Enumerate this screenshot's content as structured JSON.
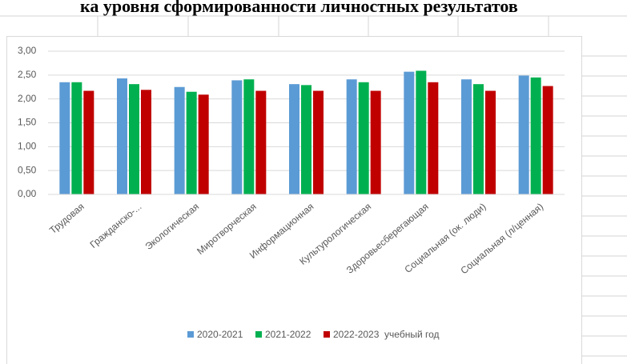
{
  "chart_data": {
    "type": "bar",
    "title": "ка уровня сформированности личностных результатов",
    "categories": [
      "Трудовая",
      "Гражданско-...",
      "Экологическая",
      "Миротворческая",
      "Информационная",
      "Культурологическая",
      "Здоровьесберегающая",
      "Социальная (ок. люди)",
      "Социальная (л/ценная)"
    ],
    "series": [
      {
        "name": "2020-2021",
        "color": "#5b9bd5",
        "values": [
          2.35,
          2.43,
          2.25,
          2.39,
          2.31,
          2.41,
          2.57,
          2.41,
          2.49
        ]
      },
      {
        "name": "2021-2022",
        "color": "#00b050",
        "values": [
          2.35,
          2.31,
          2.15,
          2.41,
          2.29,
          2.35,
          2.59,
          2.31,
          2.45
        ]
      },
      {
        "name": "2022-2023  учебный год",
        "color": "#c00000",
        "values": [
          2.17,
          2.19,
          2.09,
          2.17,
          2.17,
          2.17,
          2.35,
          2.17,
          2.27
        ]
      }
    ],
    "ylim": [
      0,
      3
    ],
    "yticks": [
      {
        "value": 0,
        "label": "0,00"
      },
      {
        "value": 0.5,
        "label": "0,50"
      },
      {
        "value": 1,
        "label": "1,00"
      },
      {
        "value": 1.5,
        "label": "1,50"
      },
      {
        "value": 2,
        "label": "2,00"
      },
      {
        "value": 2.5,
        "label": "2,50"
      },
      {
        "value": 3,
        "label": "3,00"
      }
    ],
    "grid": true,
    "legend": "bottom"
  }
}
